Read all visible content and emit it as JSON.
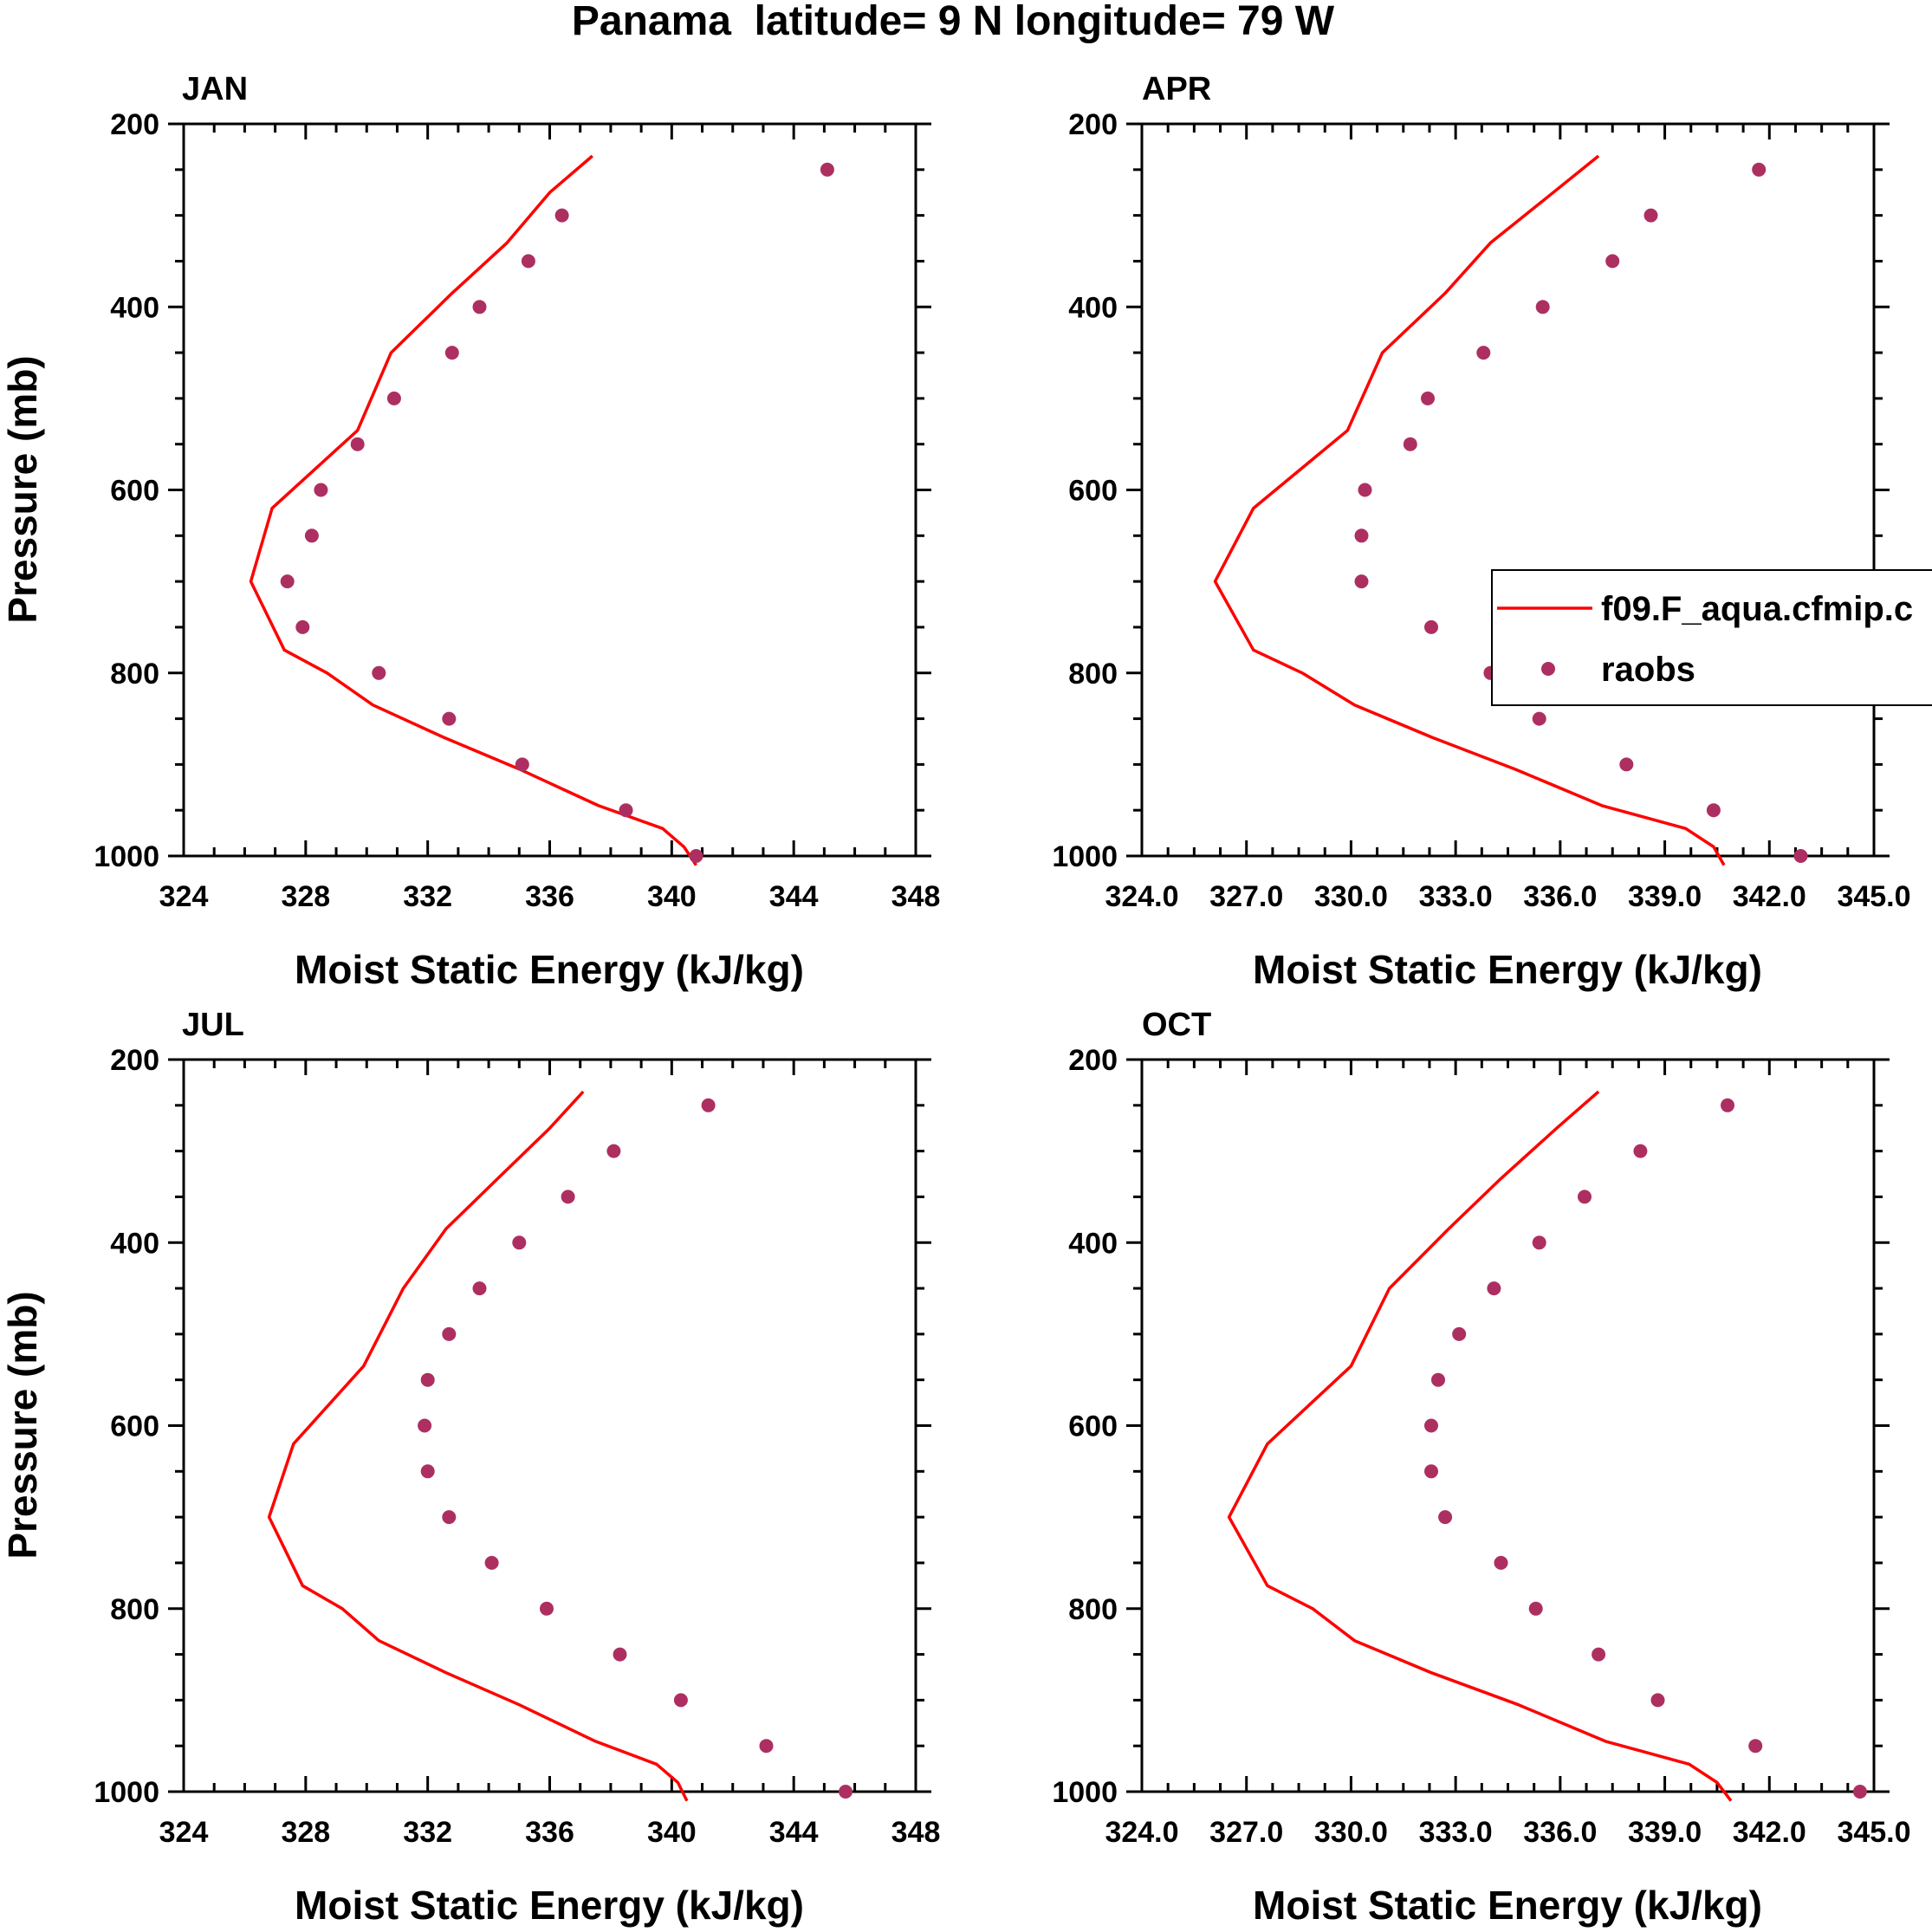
{
  "title": "Panama  latitude= 9 N longitude= 79 W",
  "colors": {
    "model": "#ff0000",
    "obs": "#ad2f62",
    "axis": "#000000"
  },
  "legend": {
    "model_label": "f09.F_aqua.cfmip.c",
    "obs_label": "raobs"
  },
  "chart_data": [
    {
      "type": "line",
      "panel": "JAN",
      "xlabel": "Moist Static Energy (kJ/kg)",
      "ylabel": "Pressure (mb)",
      "xlim": [
        324,
        348
      ],
      "ylim": [
        200,
        1000
      ],
      "yreversed": true,
      "xticks": [
        "324",
        "328",
        "332",
        "336",
        "340",
        "344",
        "348"
      ],
      "yticks": [
        "200",
        "400",
        "600",
        "800",
        "1000"
      ],
      "model": {
        "name": "f09.F_aqua.cfmip.c",
        "x": [
          337.4,
          336.0,
          334.6,
          332.8,
          330.8,
          329.7,
          326.9,
          326.2,
          327.3,
          328.7,
          330.2,
          332.5,
          335.0,
          337.6,
          339.7,
          340.4,
          340.8
        ],
        "y": [
          235,
          275,
          330,
          385,
          450,
          535,
          620,
          700,
          775,
          800,
          835,
          870,
          905,
          945,
          970,
          990,
          1010
        ]
      },
      "obs": {
        "name": "raobs",
        "x": [
          345.1,
          336.4,
          335.3,
          333.7,
          332.8,
          330.9,
          329.7,
          328.5,
          328.2,
          327.4,
          327.9,
          330.4,
          332.7,
          335.1,
          338.5,
          340.8
        ],
        "y": [
          250,
          300,
          350,
          400,
          450,
          500,
          550,
          600,
          650,
          700,
          750,
          800,
          850,
          900,
          950,
          1000
        ]
      }
    },
    {
      "type": "line",
      "panel": "APR",
      "xlabel": "Moist Static Energy (kJ/kg)",
      "ylabel": "",
      "xlim": [
        324,
        345
      ],
      "ylim": [
        200,
        1000
      ],
      "yreversed": true,
      "xticks": [
        "324.0",
        "327.0",
        "330.0",
        "333.0",
        "336.0",
        "339.0",
        "342.0",
        "345.0"
      ],
      "yticks": [
        "200",
        "400",
        "600",
        "800",
        "1000"
      ],
      "model": {
        "name": "f09.F_aqua.cfmip.c",
        "x": [
          337.1,
          335.8,
          334.0,
          332.7,
          330.9,
          329.9,
          327.2,
          326.1,
          327.2,
          328.6,
          330.1,
          332.3,
          334.7,
          337.2,
          339.6,
          340.4,
          340.7
        ],
        "y": [
          235,
          275,
          330,
          385,
          450,
          535,
          620,
          700,
          775,
          800,
          835,
          870,
          905,
          945,
          970,
          990,
          1010
        ]
      },
      "obs": {
        "name": "raobs",
        "x": [
          341.7,
          338.6,
          337.5,
          335.5,
          333.8,
          332.2,
          331.7,
          330.4,
          330.3,
          330.3,
          332.3,
          334.0,
          335.4,
          337.9,
          340.4,
          342.9
        ],
        "y": [
          250,
          300,
          350,
          400,
          450,
          500,
          550,
          600,
          650,
          700,
          750,
          800,
          850,
          900,
          950,
          1000
        ]
      }
    },
    {
      "type": "line",
      "panel": "JUL",
      "xlabel": "Moist Static Energy (kJ/kg)",
      "ylabel": "Pressure (mb)",
      "xlim": [
        324,
        348
      ],
      "ylim": [
        200,
        1000
      ],
      "yreversed": true,
      "xticks": [
        "324",
        "328",
        "332",
        "336",
        "340",
        "344",
        "348"
      ],
      "yticks": [
        "200",
        "400",
        "600",
        "800",
        "1000"
      ],
      "model": {
        "name": "f09.F_aqua.cfmip.c",
        "x": [
          337.1,
          336.0,
          334.3,
          332.6,
          331.2,
          329.9,
          327.6,
          326.8,
          327.9,
          329.2,
          330.4,
          332.6,
          335.0,
          337.5,
          339.5,
          340.2,
          340.5
        ],
        "y": [
          235,
          275,
          330,
          385,
          450,
          535,
          620,
          700,
          775,
          800,
          835,
          870,
          905,
          945,
          970,
          990,
          1010
        ]
      },
      "obs": {
        "name": "raobs",
        "x": [
          341.2,
          338.1,
          336.6,
          335.0,
          333.7,
          332.7,
          332.0,
          331.9,
          332.0,
          332.7,
          334.1,
          335.9,
          338.3,
          340.3,
          343.1,
          345.7
        ],
        "y": [
          250,
          300,
          350,
          400,
          450,
          500,
          550,
          600,
          650,
          700,
          750,
          800,
          850,
          900,
          950,
          1000
        ]
      }
    },
    {
      "type": "line",
      "panel": "OCT",
      "xlabel": "Moist Static Energy (kJ/kg)",
      "ylabel": "",
      "xlim": [
        324,
        345
      ],
      "ylim": [
        200,
        1000
      ],
      "yreversed": true,
      "xticks": [
        "324.0",
        "327.0",
        "330.0",
        "333.0",
        "336.0",
        "339.0",
        "342.0",
        "345.0"
      ],
      "yticks": [
        "200",
        "400",
        "600",
        "800",
        "1000"
      ],
      "model": {
        "name": "f09.F_aqua.cfmip.c",
        "x": [
          337.1,
          335.9,
          334.3,
          332.8,
          331.1,
          330.0,
          327.6,
          326.5,
          327.6,
          328.9,
          330.1,
          332.3,
          334.8,
          337.3,
          339.7,
          340.5,
          340.9
        ],
        "y": [
          235,
          275,
          330,
          385,
          450,
          535,
          620,
          700,
          775,
          800,
          835,
          870,
          905,
          945,
          970,
          990,
          1010
        ]
      },
      "obs": {
        "name": "raobs",
        "x": [
          340.8,
          338.3,
          336.7,
          335.4,
          334.1,
          333.1,
          332.5,
          332.3,
          332.3,
          332.7,
          334.3,
          335.3,
          337.1,
          338.8,
          341.6,
          344.6
        ],
        "y": [
          250,
          300,
          350,
          400,
          450,
          500,
          550,
          600,
          650,
          700,
          750,
          800,
          850,
          900,
          950,
          1000
        ]
      }
    }
  ]
}
